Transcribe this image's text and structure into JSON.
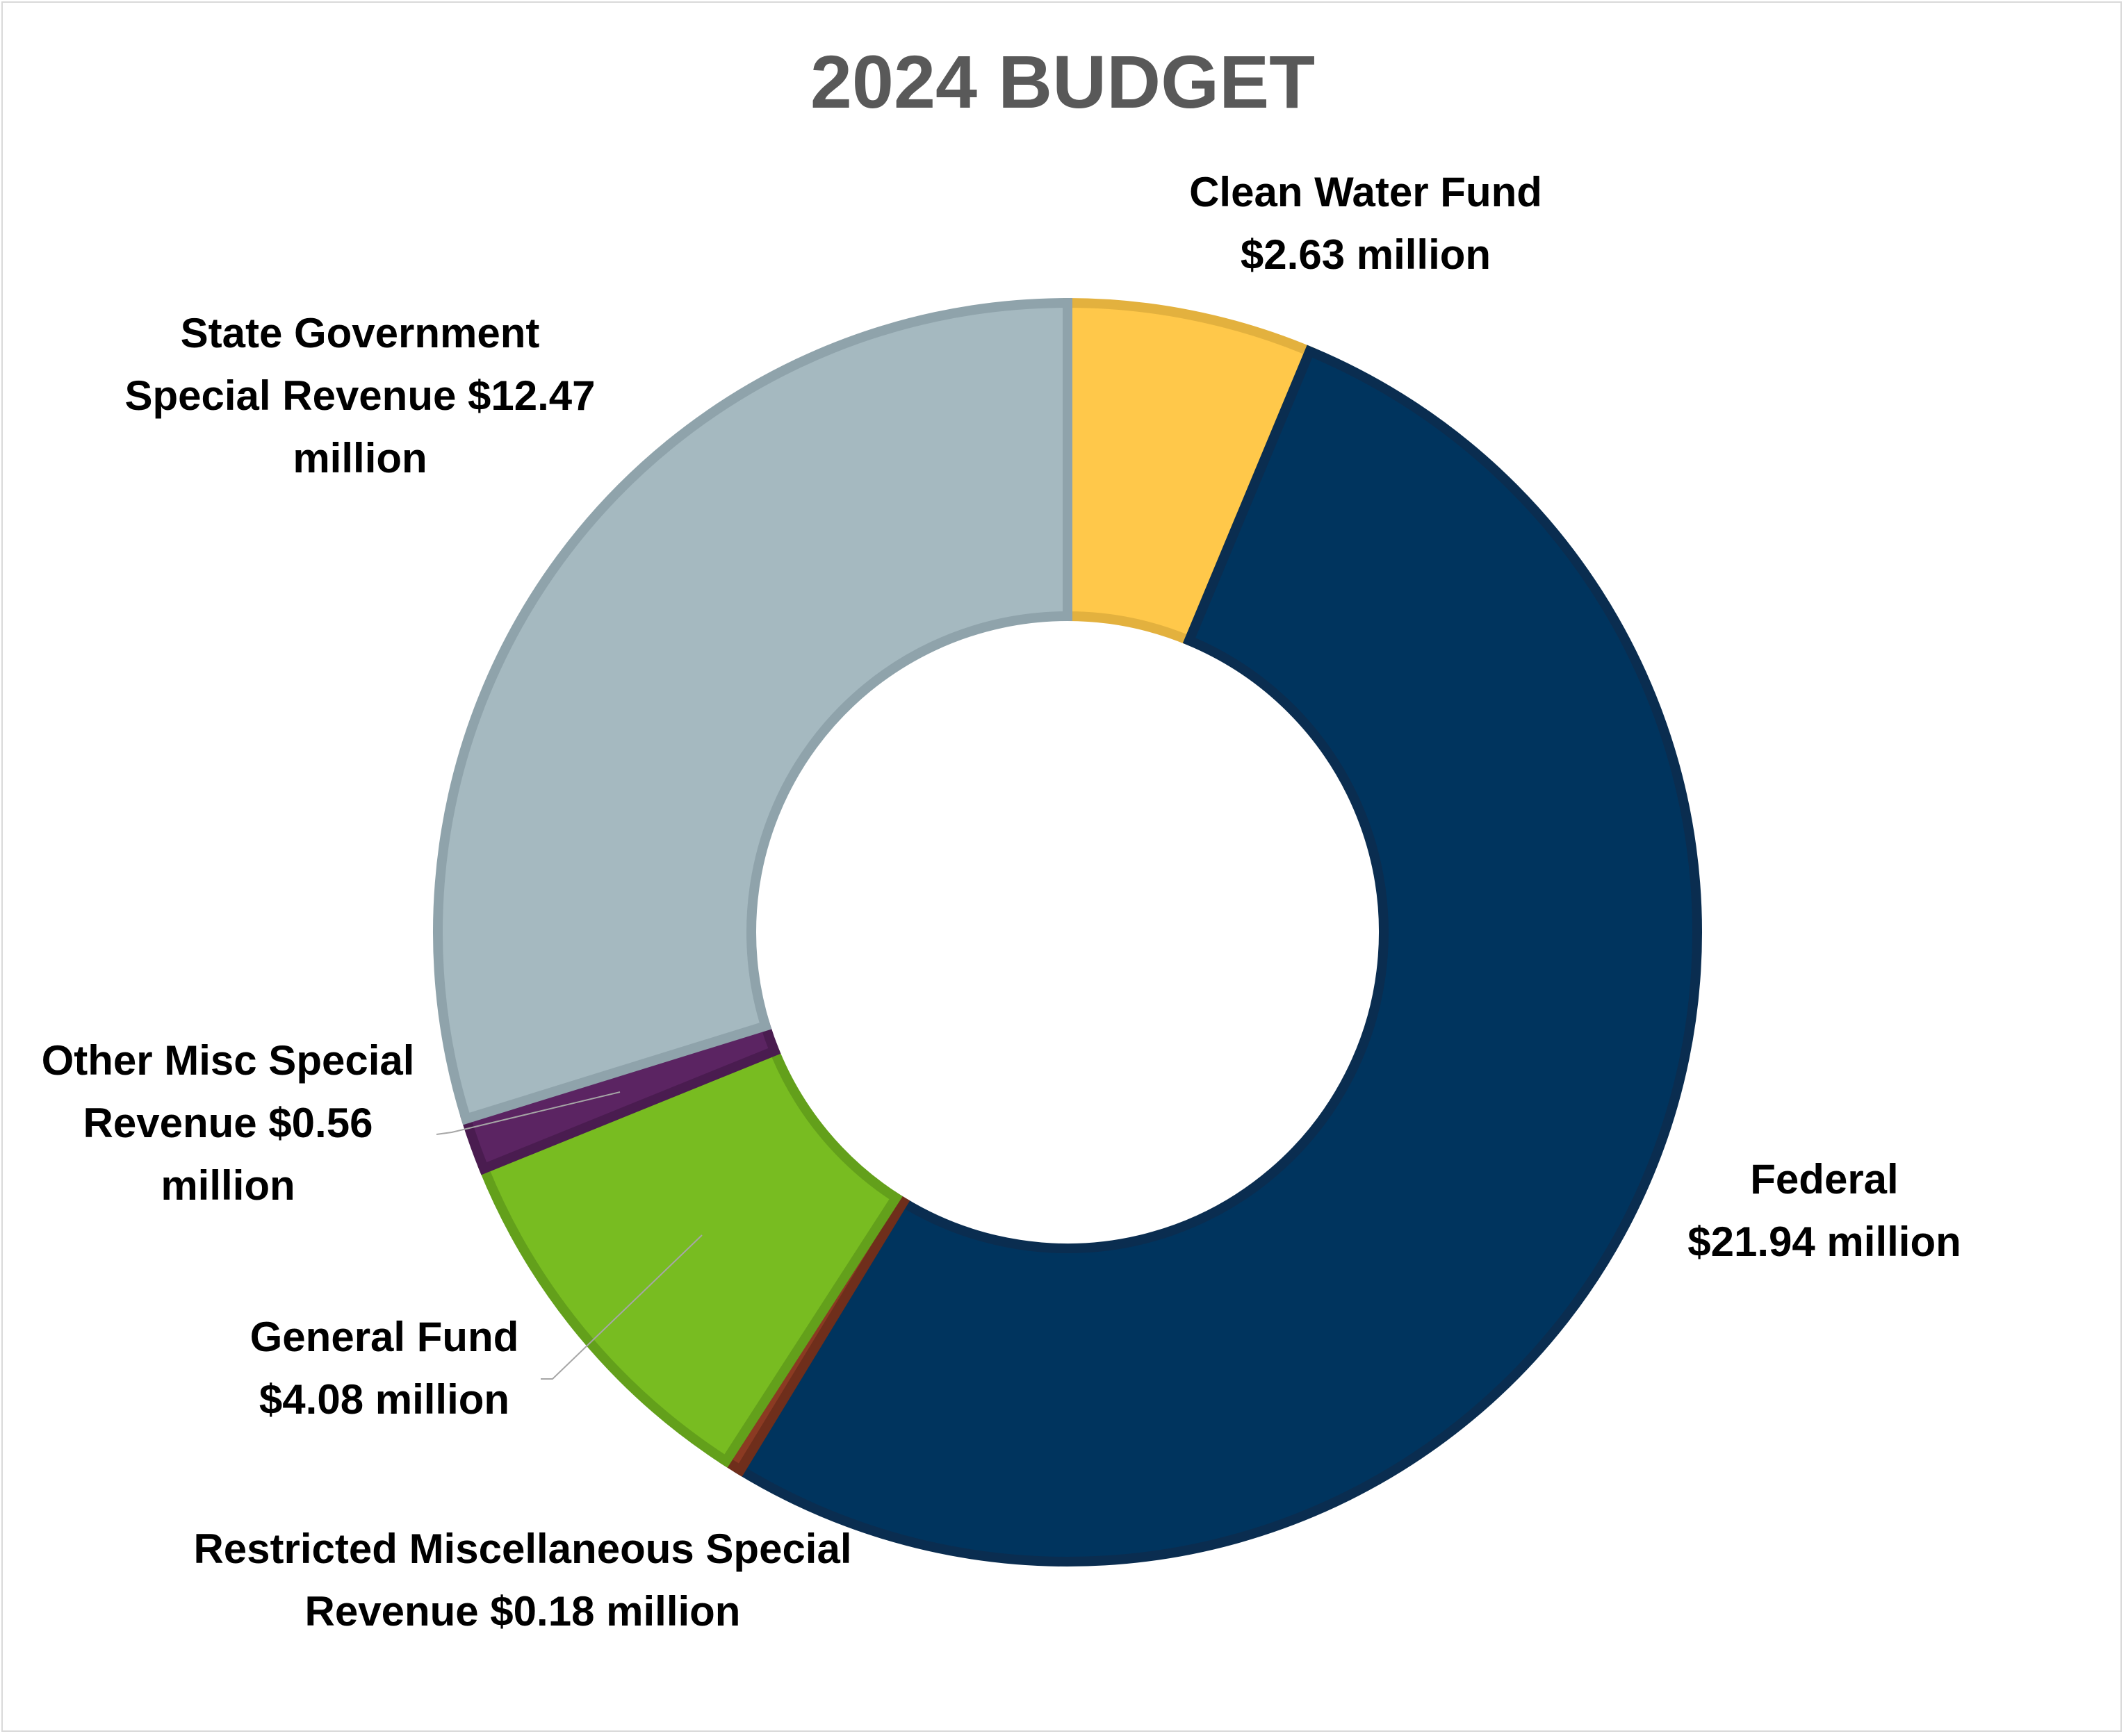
{
  "chart_data": {
    "type": "pie",
    "subtype": "donut",
    "title": "2024 BUDGET",
    "slices": [
      {
        "key": "clean_water",
        "category": "Clean Water Fund",
        "value": 2.63,
        "label_lines": [
          "Clean Water Fund",
          "$2.63 million"
        ],
        "color": "#ffc84a",
        "stroke": "#e3b13e"
      },
      {
        "key": "federal",
        "category": "Federal",
        "value": 21.94,
        "label_lines": [
          "Federal",
          "$21.94 million"
        ],
        "color": "#00345e",
        "stroke": "#0a2d50"
      },
      {
        "key": "restricted_misc",
        "category": "Restricted Miscellaneous Special Revenue",
        "value": 0.18,
        "label_lines": [
          "Restricted Miscellaneous Special",
          "Revenue $0.18  million"
        ],
        "color": "#8b3a22",
        "stroke": "#6f2e1b"
      },
      {
        "key": "general_fund",
        "category": "General Fund",
        "value": 4.08,
        "label_lines": [
          "General Fund",
          "$4.08  million"
        ],
        "color": "#78bc21",
        "stroke": "#63a01b"
      },
      {
        "key": "other_misc",
        "category": "Other Misc Special Revenue",
        "value": 0.56,
        "label_lines": [
          "Other Misc Special",
          "Revenue $0.56",
          "million"
        ],
        "color": "#5b2462",
        "stroke": "#4a1c50"
      },
      {
        "key": "state_gov",
        "category": "State Government Special Revenue",
        "value": 12.47,
        "label_lines": [
          "State Government",
          "Special Revenue $12.47",
          "million"
        ],
        "color": "#a5b9c0",
        "stroke": "#8fa3ab"
      }
    ],
    "units": "million",
    "legend": "none"
  }
}
